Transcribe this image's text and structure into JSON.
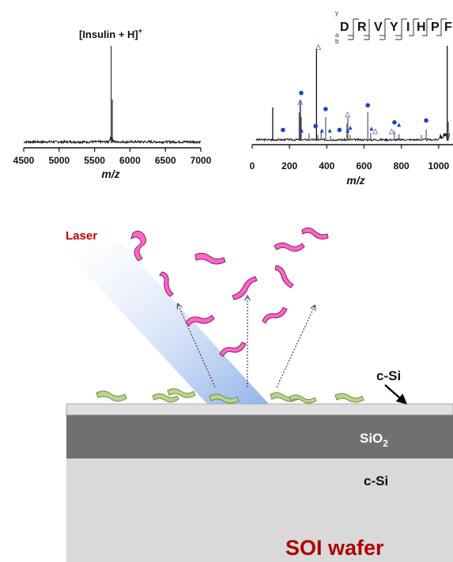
{
  "spectrum_left": {
    "peak_label": "[Insulin + H]",
    "peak_label_sup": "+",
    "xlabel": "m/z"
  },
  "spectrum_right": {
    "ion_labels": [
      "y",
      "a",
      "b"
    ],
    "sequence": [
      "D",
      "R",
      "V",
      "Y",
      "I",
      "H",
      "P",
      "F"
    ],
    "xlabel": "m/z"
  },
  "diagram": {
    "laser_label": "Laser",
    "top_layer_label": "c-Si",
    "oxide_label_main": "SiO",
    "oxide_label_sub": "2",
    "bottom_layer_label": "c-Si",
    "wafer_label": "SOI wafer"
  },
  "colors": {
    "laser_text": "#c00000",
    "wafer_text": "#b00000",
    "molecule_pink": "#ff66cc",
    "molecule_green": "#b8d68a",
    "oxide_layer": "#707070",
    "si_layer": "#d9d9d9",
    "top_si": "#e0e0e0",
    "beam": "#9ab8e8",
    "marker_blue": "#1f3fcf"
  },
  "chart_data": [
    {
      "type": "line",
      "xlabel": "m/z",
      "ylabel": "",
      "xlim": [
        4500,
        7000
      ],
      "x_ticks": [
        4500,
        5000,
        5500,
        6000,
        6500,
        7000
      ],
      "peaks": [
        {
          "x": 5734,
          "y": 1.0
        }
      ],
      "baseline": 0.05
    },
    {
      "type": "bar",
      "xlabel": "m/z",
      "ylabel": "",
      "xlim": [
        0,
        1060
      ],
      "x_ticks": [
        0,
        200,
        400,
        600,
        800,
        1000
      ],
      "sticks": [
        [
          110,
          0.35
        ],
        [
          252,
          0.3
        ],
        [
          258,
          0.42
        ],
        [
          263,
          0.25
        ],
        [
          305,
          0.08
        ],
        [
          345,
          0.97
        ],
        [
          352,
          0.06
        ],
        [
          370,
          0.1
        ],
        [
          394,
          0.25
        ],
        [
          420,
          0.05
        ],
        [
          508,
          0.18
        ],
        [
          513,
          0.25
        ],
        [
          525,
          0.06
        ],
        [
          620,
          0.3
        ],
        [
          635,
          0.08
        ],
        [
          763,
          0.1
        ],
        [
          787,
          0.07
        ],
        [
          907,
          0.06
        ],
        [
          933,
          0.12
        ],
        [
          1046,
          1.0
        ],
        [
          1052,
          0.2
        ]
      ],
      "markers_circle": [
        [
          165,
          0.08
        ],
        [
          263,
          0.47
        ],
        [
          340,
          0.12
        ],
        [
          394,
          0.3
        ],
        [
          468,
          0.08
        ],
        [
          620,
          0.34
        ],
        [
          763,
          0.16
        ],
        [
          933,
          0.18
        ]
      ],
      "markers_triangle_filled": [
        [
          265,
          0.07
        ],
        [
          374,
          0.07
        ],
        [
          416,
          0.07
        ],
        [
          513,
          0.07
        ],
        [
          526,
          0.1
        ],
        [
          640,
          0.09
        ],
        [
          787,
          0.13
        ]
      ],
      "markers_triangle_open": [
        [
          258,
          0.37
        ],
        [
          355,
          0.95
        ],
        [
          512,
          0.24
        ],
        [
          660,
          0.06
        ],
        [
          748,
          0.06
        ]
      ]
    }
  ]
}
